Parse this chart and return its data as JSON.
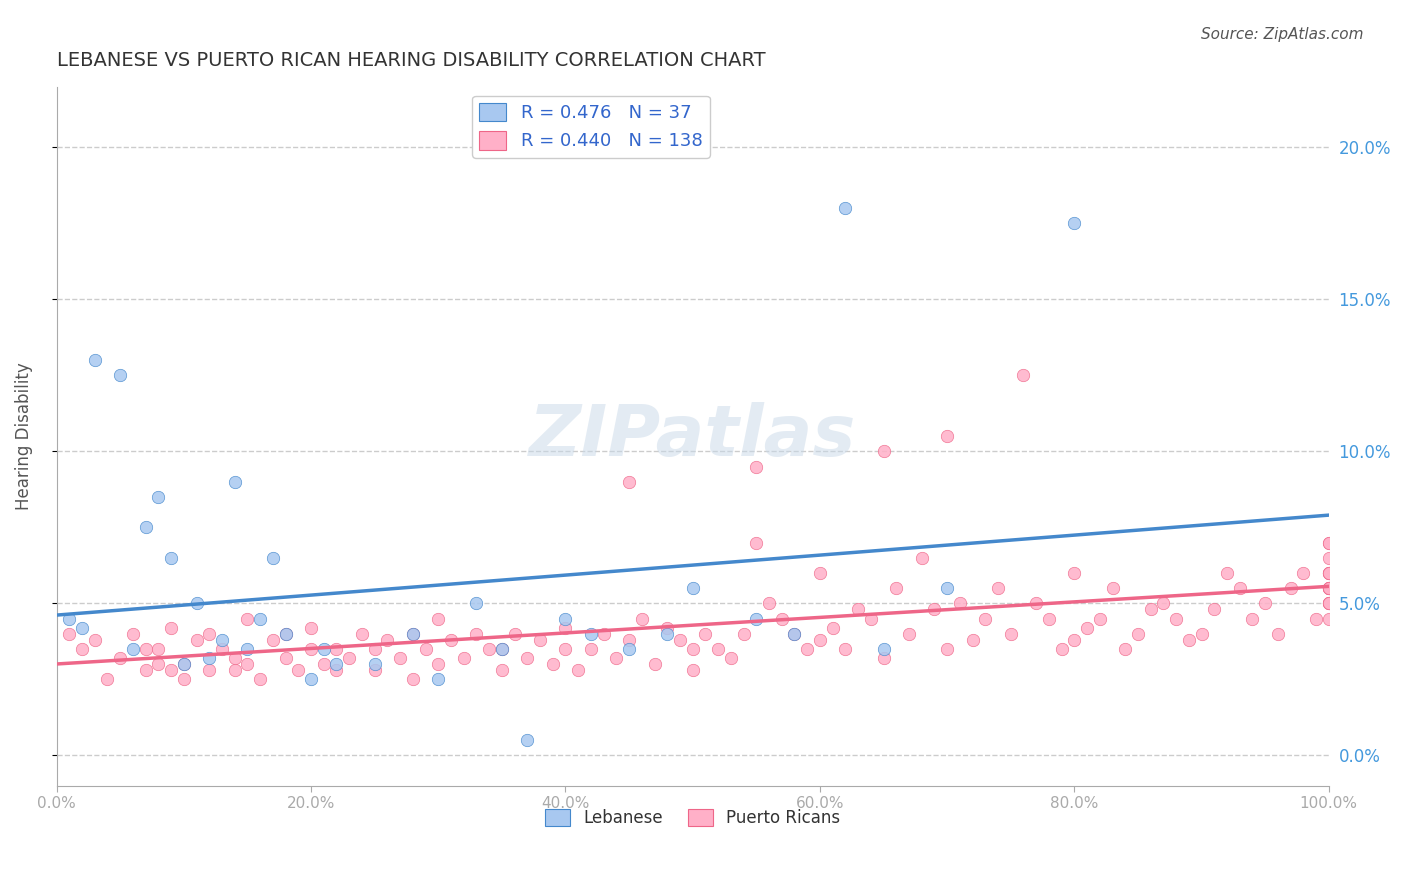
{
  "title": "LEBANESE VS PUERTO RICAN HEARING DISABILITY CORRELATION CHART",
  "source": "Source: ZipAtlas.com",
  "xlabel": "",
  "ylabel": "Hearing Disability",
  "xlim": [
    0,
    100
  ],
  "ylim": [
    -1,
    22
  ],
  "background_color": "#ffffff",
  "watermark": "ZIPatlas",
  "lebanese": {
    "color_scatter": "#a8c8f0",
    "color_line": "#4488cc",
    "R": 0.476,
    "N": 37,
    "x": [
      1,
      2,
      3,
      5,
      6,
      7,
      8,
      9,
      10,
      11,
      12,
      13,
      14,
      15,
      16,
      17,
      18,
      20,
      21,
      22,
      25,
      28,
      30,
      33,
      35,
      37,
      40,
      42,
      45,
      48,
      50,
      55,
      58,
      62,
      65,
      70,
      80
    ],
    "y": [
      4.5,
      4.2,
      13.0,
      12.5,
      3.5,
      7.5,
      8.5,
      6.5,
      3.0,
      5.0,
      3.2,
      3.8,
      9.0,
      3.5,
      4.5,
      6.5,
      4.0,
      2.5,
      3.5,
      3.0,
      3.0,
      4.0,
      2.5,
      5.0,
      3.5,
      0.5,
      4.5,
      4.0,
      3.5,
      4.0,
      5.5,
      4.5,
      4.0,
      18.0,
      3.5,
      5.5,
      17.5
    ]
  },
  "puerto_rican": {
    "color_scatter": "#ffb0c8",
    "color_line": "#ee6688",
    "R": 0.44,
    "N": 138,
    "x": [
      1,
      2,
      3,
      4,
      5,
      6,
      7,
      7,
      8,
      8,
      9,
      9,
      10,
      10,
      11,
      12,
      12,
      13,
      14,
      14,
      15,
      15,
      16,
      17,
      18,
      18,
      19,
      20,
      20,
      21,
      22,
      22,
      23,
      24,
      25,
      25,
      26,
      27,
      28,
      28,
      29,
      30,
      30,
      31,
      32,
      33,
      34,
      35,
      35,
      36,
      37,
      38,
      39,
      40,
      40,
      41,
      42,
      43,
      44,
      45,
      45,
      46,
      47,
      48,
      49,
      50,
      50,
      51,
      52,
      53,
      54,
      55,
      55,
      56,
      57,
      58,
      59,
      60,
      60,
      61,
      62,
      63,
      64,
      65,
      65,
      66,
      67,
      68,
      69,
      70,
      70,
      71,
      72,
      73,
      74,
      75,
      76,
      77,
      78,
      79,
      80,
      80,
      81,
      82,
      83,
      84,
      85,
      86,
      87,
      88,
      89,
      90,
      91,
      92,
      93,
      94,
      95,
      96,
      97,
      98,
      99,
      100,
      100,
      100,
      100,
      100,
      100,
      100,
      100,
      100,
      100,
      100,
      100,
      100,
      100,
      100,
      100,
      100
    ],
    "y": [
      4.0,
      3.5,
      3.8,
      2.5,
      3.2,
      4.0,
      3.5,
      2.8,
      3.0,
      3.5,
      2.8,
      4.2,
      3.0,
      2.5,
      3.8,
      2.8,
      4.0,
      3.5,
      2.8,
      3.2,
      3.0,
      4.5,
      2.5,
      3.8,
      3.2,
      4.0,
      2.8,
      3.5,
      4.2,
      3.0,
      2.8,
      3.5,
      3.2,
      4.0,
      3.5,
      2.8,
      3.8,
      3.2,
      4.0,
      2.5,
      3.5,
      3.0,
      4.5,
      3.8,
      3.2,
      4.0,
      3.5,
      2.8,
      3.5,
      4.0,
      3.2,
      3.8,
      3.0,
      4.2,
      3.5,
      2.8,
      3.5,
      4.0,
      3.2,
      9.0,
      3.8,
      4.5,
      3.0,
      4.2,
      3.8,
      3.5,
      2.8,
      4.0,
      3.5,
      3.2,
      4.0,
      7.0,
      9.5,
      5.0,
      4.5,
      4.0,
      3.5,
      3.8,
      6.0,
      4.2,
      3.5,
      4.8,
      4.5,
      10.0,
      3.2,
      5.5,
      4.0,
      6.5,
      4.8,
      3.5,
      10.5,
      5.0,
      3.8,
      4.5,
      5.5,
      4.0,
      12.5,
      5.0,
      4.5,
      3.5,
      6.0,
      3.8,
      4.2,
      4.5,
      5.5,
      3.5,
      4.0,
      4.8,
      5.0,
      4.5,
      3.8,
      4.0,
      4.8,
      6.0,
      5.5,
      4.5,
      5.0,
      4.0,
      5.5,
      6.0,
      4.5,
      5.0,
      5.5,
      6.0,
      5.5,
      5.0,
      4.5,
      6.0,
      5.5,
      5.0,
      7.0,
      5.5,
      5.0,
      6.0,
      5.5,
      6.0,
      7.0,
      6.5
    ]
  },
  "ytick_labels": [
    "0.0%",
    "5.0%",
    "10.0%",
    "15.0%",
    "20.0%"
  ],
  "ytick_values": [
    0,
    5,
    10,
    15,
    20
  ],
  "xtick_labels": [
    "0.0%",
    "20.0%",
    "40.0%",
    "60.0%",
    "80.0%",
    "100.0%"
  ],
  "xtick_values": [
    0,
    20,
    40,
    60,
    80,
    100
  ],
  "right_ytick_color": "#4499dd",
  "grid_color": "#cccccc",
  "grid_style": "--"
}
